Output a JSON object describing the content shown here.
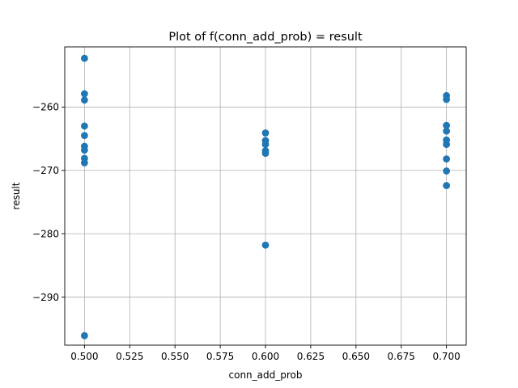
{
  "chart_data": {
    "type": "scatter",
    "title": "Plot of f(conn_add_prob) = result",
    "xlabel": "conn_add_prob",
    "ylabel": "result",
    "xlim": [
      0.4891,
      0.7109
    ],
    "ylim": [
      -297.6,
      -250.5
    ],
    "xticks": [
      {
        "value": 0.5,
        "label": "0.500"
      },
      {
        "value": 0.525,
        "label": "0.525"
      },
      {
        "value": 0.55,
        "label": "0.550"
      },
      {
        "value": 0.575,
        "label": "0.575"
      },
      {
        "value": 0.6,
        "label": "0.600"
      },
      {
        "value": 0.625,
        "label": "0.625"
      },
      {
        "value": 0.65,
        "label": "0.650"
      },
      {
        "value": 0.675,
        "label": "0.675"
      },
      {
        "value": 0.7,
        "label": "0.700"
      }
    ],
    "yticks": [
      {
        "value": -290,
        "label": "−290"
      },
      {
        "value": -280,
        "label": "−280"
      },
      {
        "value": -270,
        "label": "−270"
      },
      {
        "value": -260,
        "label": "−260"
      }
    ],
    "grid": true,
    "color": "#1f77b4",
    "points": [
      {
        "x": 0.5,
        "y": -252.3
      },
      {
        "x": 0.5,
        "y": -257.9
      },
      {
        "x": 0.5,
        "y": -258.9
      },
      {
        "x": 0.5,
        "y": -263.0
      },
      {
        "x": 0.5,
        "y": -264.5
      },
      {
        "x": 0.5,
        "y": -266.2
      },
      {
        "x": 0.5,
        "y": -266.8
      },
      {
        "x": 0.5,
        "y": -268.1
      },
      {
        "x": 0.5,
        "y": -268.8
      },
      {
        "x": 0.5,
        "y": -296.1
      },
      {
        "x": 0.6,
        "y": -264.1
      },
      {
        "x": 0.6,
        "y": -265.3
      },
      {
        "x": 0.6,
        "y": -265.9
      },
      {
        "x": 0.6,
        "y": -266.9
      },
      {
        "x": 0.6,
        "y": -267.3
      },
      {
        "x": 0.6,
        "y": -281.8
      },
      {
        "x": 0.7,
        "y": -258.2
      },
      {
        "x": 0.7,
        "y": -258.8
      },
      {
        "x": 0.7,
        "y": -262.9
      },
      {
        "x": 0.7,
        "y": -263.8
      },
      {
        "x": 0.7,
        "y": -265.2
      },
      {
        "x": 0.7,
        "y": -265.9
      },
      {
        "x": 0.7,
        "y": -268.2
      },
      {
        "x": 0.7,
        "y": -270.1
      },
      {
        "x": 0.7,
        "y": -272.4
      }
    ]
  }
}
